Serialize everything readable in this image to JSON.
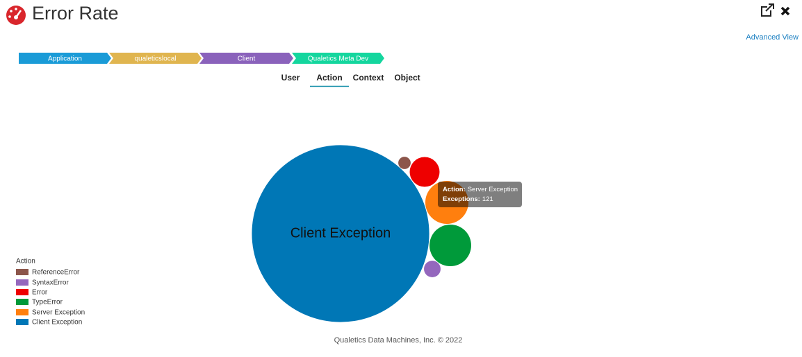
{
  "header": {
    "title": "Error Rate",
    "advanced_view": "Advanced View"
  },
  "breadcrumbs": [
    "Application",
    "qualeticslocal",
    "Client",
    "Qualetics Meta Dev"
  ],
  "breadcrumb_colors": [
    "#1a9bd7",
    "#e0b54f",
    "#8a62bb",
    "#14d69e"
  ],
  "tabs": [
    "User",
    "Action",
    "Context",
    "Object"
  ],
  "active_tab": 1,
  "chart_data": {
    "type": "bubble",
    "legend_title": "Action",
    "categories": [
      "ReferenceError",
      "SyntaxError",
      "Error",
      "TypeError",
      "Server Exception",
      "Client Exception"
    ],
    "values": [
      10,
      18,
      58,
      113,
      121,
      2047
    ],
    "colors": [
      "#8c564b",
      "#9467bd",
      "#ee0000",
      "#009a3a",
      "#ff7f0e",
      "#0077b6"
    ],
    "tooltip": {
      "index": 4,
      "category_label": "Action:",
      "value_label": "Exceptions:"
    }
  },
  "footer": "Qualetics Data Machines, Inc. © 2022"
}
